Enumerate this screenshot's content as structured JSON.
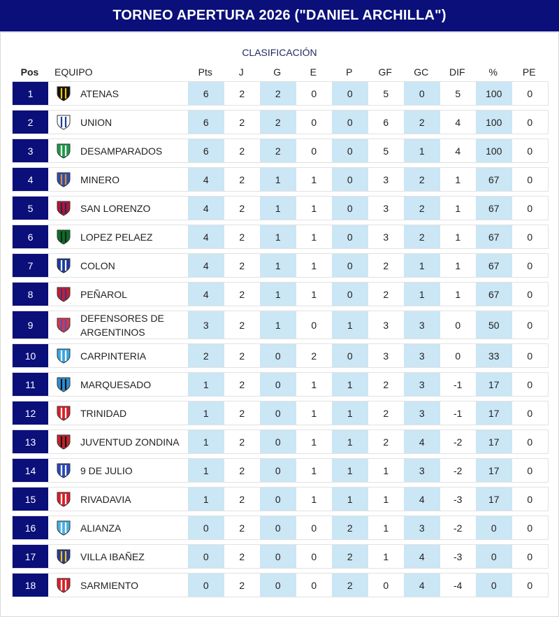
{
  "title": "TORNEO APERTURA 2026 (\"DANIEL ARCHILLA\")",
  "subtitle": "CLASIFICACIÓN",
  "columns": {
    "pos": "Pos",
    "team": "EQUIPO",
    "pts": "Pts",
    "j": "J",
    "g": "G",
    "e": "E",
    "p": "P",
    "gf": "GF",
    "gc": "GC",
    "dif": "DIF",
    "pct": "%",
    "pe": "PE"
  },
  "colors": {
    "header_bg": "#0a0f7a",
    "highlight": "#cbe6f4"
  },
  "rows": [
    {
      "pos": "1",
      "team": "ATENAS",
      "crest": "atenas-crest-icon",
      "c1": "#111111",
      "c2": "#f2c800",
      "pts": "6",
      "j": "2",
      "g": "2",
      "e": "0",
      "p": "0",
      "gf": "5",
      "gc": "0",
      "dif": "5",
      "pct": "100",
      "pe": "0"
    },
    {
      "pos": "2",
      "team": "UNION",
      "crest": "union-crest-icon",
      "c1": "#ffffff",
      "c2": "#1a3d9a",
      "pts": "6",
      "j": "2",
      "g": "2",
      "e": "0",
      "p": "0",
      "gf": "6",
      "gc": "2",
      "dif": "4",
      "pct": "100",
      "pe": "0"
    },
    {
      "pos": "3",
      "team": "DESAMPARADOS",
      "crest": "desamparados-crest-icon",
      "c1": "#1e9a4b",
      "c2": "#ffffff",
      "pts": "6",
      "j": "2",
      "g": "2",
      "e": "0",
      "p": "0",
      "gf": "5",
      "gc": "1",
      "dif": "4",
      "pct": "100",
      "pe": "0"
    },
    {
      "pos": "4",
      "team": "MINERO",
      "crest": "minero-crest-icon",
      "c1": "#2a4fb0",
      "c2": "#e8892b",
      "pts": "4",
      "j": "2",
      "g": "1",
      "e": "1",
      "p": "0",
      "gf": "3",
      "gc": "2",
      "dif": "1",
      "pct": "67",
      "pe": "0"
    },
    {
      "pos": "5",
      "team": "SAN LORENZO",
      "crest": "san-lorenzo-crest-icon",
      "c1": "#b3162d",
      "c2": "#1b2a6b",
      "pts": "4",
      "j": "2",
      "g": "1",
      "e": "1",
      "p": "0",
      "gf": "3",
      "gc": "2",
      "dif": "1",
      "pct": "67",
      "pe": "0"
    },
    {
      "pos": "6",
      "team": "LOPEZ PELAEZ",
      "crest": "lopez-pelaez-crest-icon",
      "c1": "#0f6b2c",
      "c2": "#0a2a12",
      "pts": "4",
      "j": "2",
      "g": "1",
      "e": "1",
      "p": "0",
      "gf": "3",
      "gc": "2",
      "dif": "1",
      "pct": "67",
      "pe": "0"
    },
    {
      "pos": "7",
      "team": "COLON",
      "crest": "colon-crest-icon",
      "c1": "#1d3a9e",
      "c2": "#ffffff",
      "pts": "4",
      "j": "2",
      "g": "1",
      "e": "1",
      "p": "0",
      "gf": "2",
      "gc": "1",
      "dif": "1",
      "pct": "67",
      "pe": "0"
    },
    {
      "pos": "8",
      "team": "PEÑAROL",
      "crest": "penarol-crest-icon",
      "c1": "#c81e2a",
      "c2": "#2a3a9a",
      "pts": "4",
      "j": "2",
      "g": "1",
      "e": "1",
      "p": "0",
      "gf": "2",
      "gc": "1",
      "dif": "1",
      "pct": "67",
      "pe": "0"
    },
    {
      "pos": "9",
      "team": "DEFENSORES DE ARGENTINOS",
      "crest": "defensores-crest-icon",
      "c1": "#d8364a",
      "c2": "#3a58c8",
      "pts": "3",
      "j": "2",
      "g": "1",
      "e": "0",
      "p": "1",
      "gf": "3",
      "gc": "3",
      "dif": "0",
      "pct": "50",
      "pe": "0"
    },
    {
      "pos": "10",
      "team": "CARPINTERIA",
      "crest": "carpinteria-crest-icon",
      "c1": "#3aa6e0",
      "c2": "#ffffff",
      "pts": "2",
      "j": "2",
      "g": "0",
      "e": "2",
      "p": "0",
      "gf": "3",
      "gc": "3",
      "dif": "0",
      "pct": "33",
      "pe": "0"
    },
    {
      "pos": "11",
      "team": "MARQUESADO",
      "crest": "marquesado-crest-icon",
      "c1": "#2a8fd6",
      "c2": "#111111",
      "pts": "1",
      "j": "2",
      "g": "0",
      "e": "1",
      "p": "1",
      "gf": "2",
      "gc": "3",
      "dif": "-1",
      "pct": "17",
      "pe": "0"
    },
    {
      "pos": "12",
      "team": "TRINIDAD",
      "crest": "trinidad-crest-icon",
      "c1": "#d8202a",
      "c2": "#ffffff",
      "pts": "1",
      "j": "2",
      "g": "0",
      "e": "1",
      "p": "1",
      "gf": "2",
      "gc": "3",
      "dif": "-1",
      "pct": "17",
      "pe": "0"
    },
    {
      "pos": "13",
      "team": "JUVENTUD ZONDINA",
      "crest": "juventud-zondina-crest-icon",
      "c1": "#c8202a",
      "c2": "#111111",
      "pts": "1",
      "j": "2",
      "g": "0",
      "e": "1",
      "p": "1",
      "gf": "2",
      "gc": "4",
      "dif": "-2",
      "pct": "17",
      "pe": "0"
    },
    {
      "pos": "14",
      "team": "9 DE JULIO",
      "crest": "nueve-de-julio-crest-icon",
      "c1": "#2a48b8",
      "c2": "#ffffff",
      "pts": "1",
      "j": "2",
      "g": "0",
      "e": "1",
      "p": "1",
      "gf": "1",
      "gc": "3",
      "dif": "-2",
      "pct": "17",
      "pe": "0"
    },
    {
      "pos": "15",
      "team": "RIVADAVIA",
      "crest": "rivadavia-crest-icon",
      "c1": "#d8202a",
      "c2": "#ffffff",
      "pts": "1",
      "j": "2",
      "g": "0",
      "e": "1",
      "p": "1",
      "gf": "1",
      "gc": "4",
      "dif": "-3",
      "pct": "17",
      "pe": "0"
    },
    {
      "pos": "16",
      "team": "ALIANZA",
      "crest": "alianza-crest-icon",
      "c1": "#4ab0e0",
      "c2": "#ffffff",
      "pts": "0",
      "j": "2",
      "g": "0",
      "e": "0",
      "p": "2",
      "gf": "1",
      "gc": "3",
      "dif": "-2",
      "pct": "0",
      "pe": "0"
    },
    {
      "pos": "17",
      "team": "VILLA IBAÑEZ",
      "crest": "villa-ibanez-crest-icon",
      "c1": "#2a3a9a",
      "c2": "#f2c800",
      "pts": "0",
      "j": "2",
      "g": "0",
      "e": "0",
      "p": "2",
      "gf": "1",
      "gc": "4",
      "dif": "-3",
      "pct": "0",
      "pe": "0"
    },
    {
      "pos": "18",
      "team": "SARMIENTO",
      "crest": "sarmiento-crest-icon",
      "c1": "#d8202a",
      "c2": "#ffffff",
      "pts": "0",
      "j": "2",
      "g": "0",
      "e": "0",
      "p": "2",
      "gf": "0",
      "gc": "4",
      "dif": "-4",
      "pct": "0",
      "pe": "0"
    }
  ]
}
